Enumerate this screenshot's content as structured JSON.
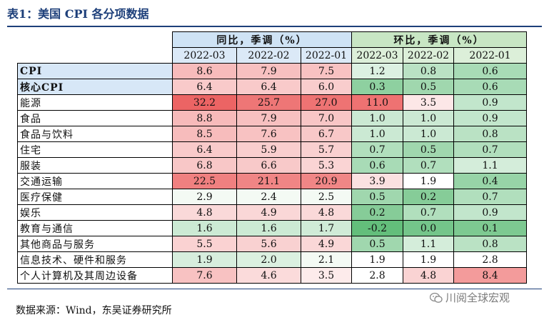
{
  "title": "表1：美国 CPI 各分项数据",
  "groups": {
    "yoy": "同比，季调（%）",
    "mom": "环比，季调（%）"
  },
  "periods": [
    "2022-03",
    "2022-02",
    "2022-01"
  ],
  "rows": [
    {
      "label": "CPI",
      "yoy": [
        "8.6",
        "7.9",
        "7.5"
      ],
      "mom": [
        "1.2",
        "0.8",
        "0.6"
      ]
    },
    {
      "label": "核心CPI",
      "yoy": [
        "6.4",
        "6.4",
        "6.0"
      ],
      "mom": [
        "0.3",
        "0.5",
        "0.6"
      ]
    },
    {
      "label": "能源",
      "yoy": [
        "32.2",
        "25.7",
        "27.0"
      ],
      "mom": [
        "11.0",
        "3.5",
        "0.9"
      ]
    },
    {
      "label": "食品",
      "yoy": [
        "8.8",
        "7.9",
        "7.0"
      ],
      "mom": [
        "1.0",
        "1.0",
        "0.9"
      ]
    },
    {
      "label": "食品与饮料",
      "yoy": [
        "8.5",
        "7.6",
        "6.7"
      ],
      "mom": [
        "1.0",
        "1.0",
        "0.8"
      ]
    },
    {
      "label": "住宅",
      "yoy": [
        "6.4",
        "5.9",
        "5.7"
      ],
      "mom": [
        "0.7",
        "0.5",
        "0.7"
      ]
    },
    {
      "label": "服装",
      "yoy": [
        "6.8",
        "6.6",
        "5.3"
      ],
      "mom": [
        "0.6",
        "0.7",
        "1.1"
      ]
    },
    {
      "label": "交通运输",
      "yoy": [
        "22.5",
        "21.1",
        "20.9"
      ],
      "mom": [
        "3.9",
        "1.9",
        "0.4"
      ]
    },
    {
      "label": "医疗保健",
      "yoy": [
        "2.9",
        "2.4",
        "2.5"
      ],
      "mom": [
        "0.5",
        "0.2",
        "0.7"
      ]
    },
    {
      "label": "娱乐",
      "yoy": [
        "4.8",
        "4.9",
        "4.8"
      ],
      "mom": [
        "0.2",
        "0.7",
        "0.9"
      ]
    },
    {
      "label": "教育与通信",
      "yoy": [
        "1.6",
        "1.6",
        "1.7"
      ],
      "mom": [
        "-0.2",
        "0.0",
        "0.1"
      ]
    },
    {
      "label": "其他商品与服务",
      "yoy": [
        "5.5",
        "5.6",
        "4.9"
      ],
      "mom": [
        "0.5",
        "1.1",
        "0.8"
      ]
    },
    {
      "label": "信息技术、硬件和服务",
      "yoy": [
        "1.9",
        "2.0",
        "2.1"
      ],
      "mom": [
        "1.9",
        "1.9",
        "2.8"
      ]
    },
    {
      "label": "个人计算机及其周边设备",
      "yoy": [
        "7.6",
        "4.6",
        "3.5"
      ],
      "mom": [
        "2.8",
        "4.8",
        "8.4"
      ]
    }
  ],
  "source": "数据来源：Wind，东吴证券研究所",
  "watermark": "川阅全球宏观"
}
